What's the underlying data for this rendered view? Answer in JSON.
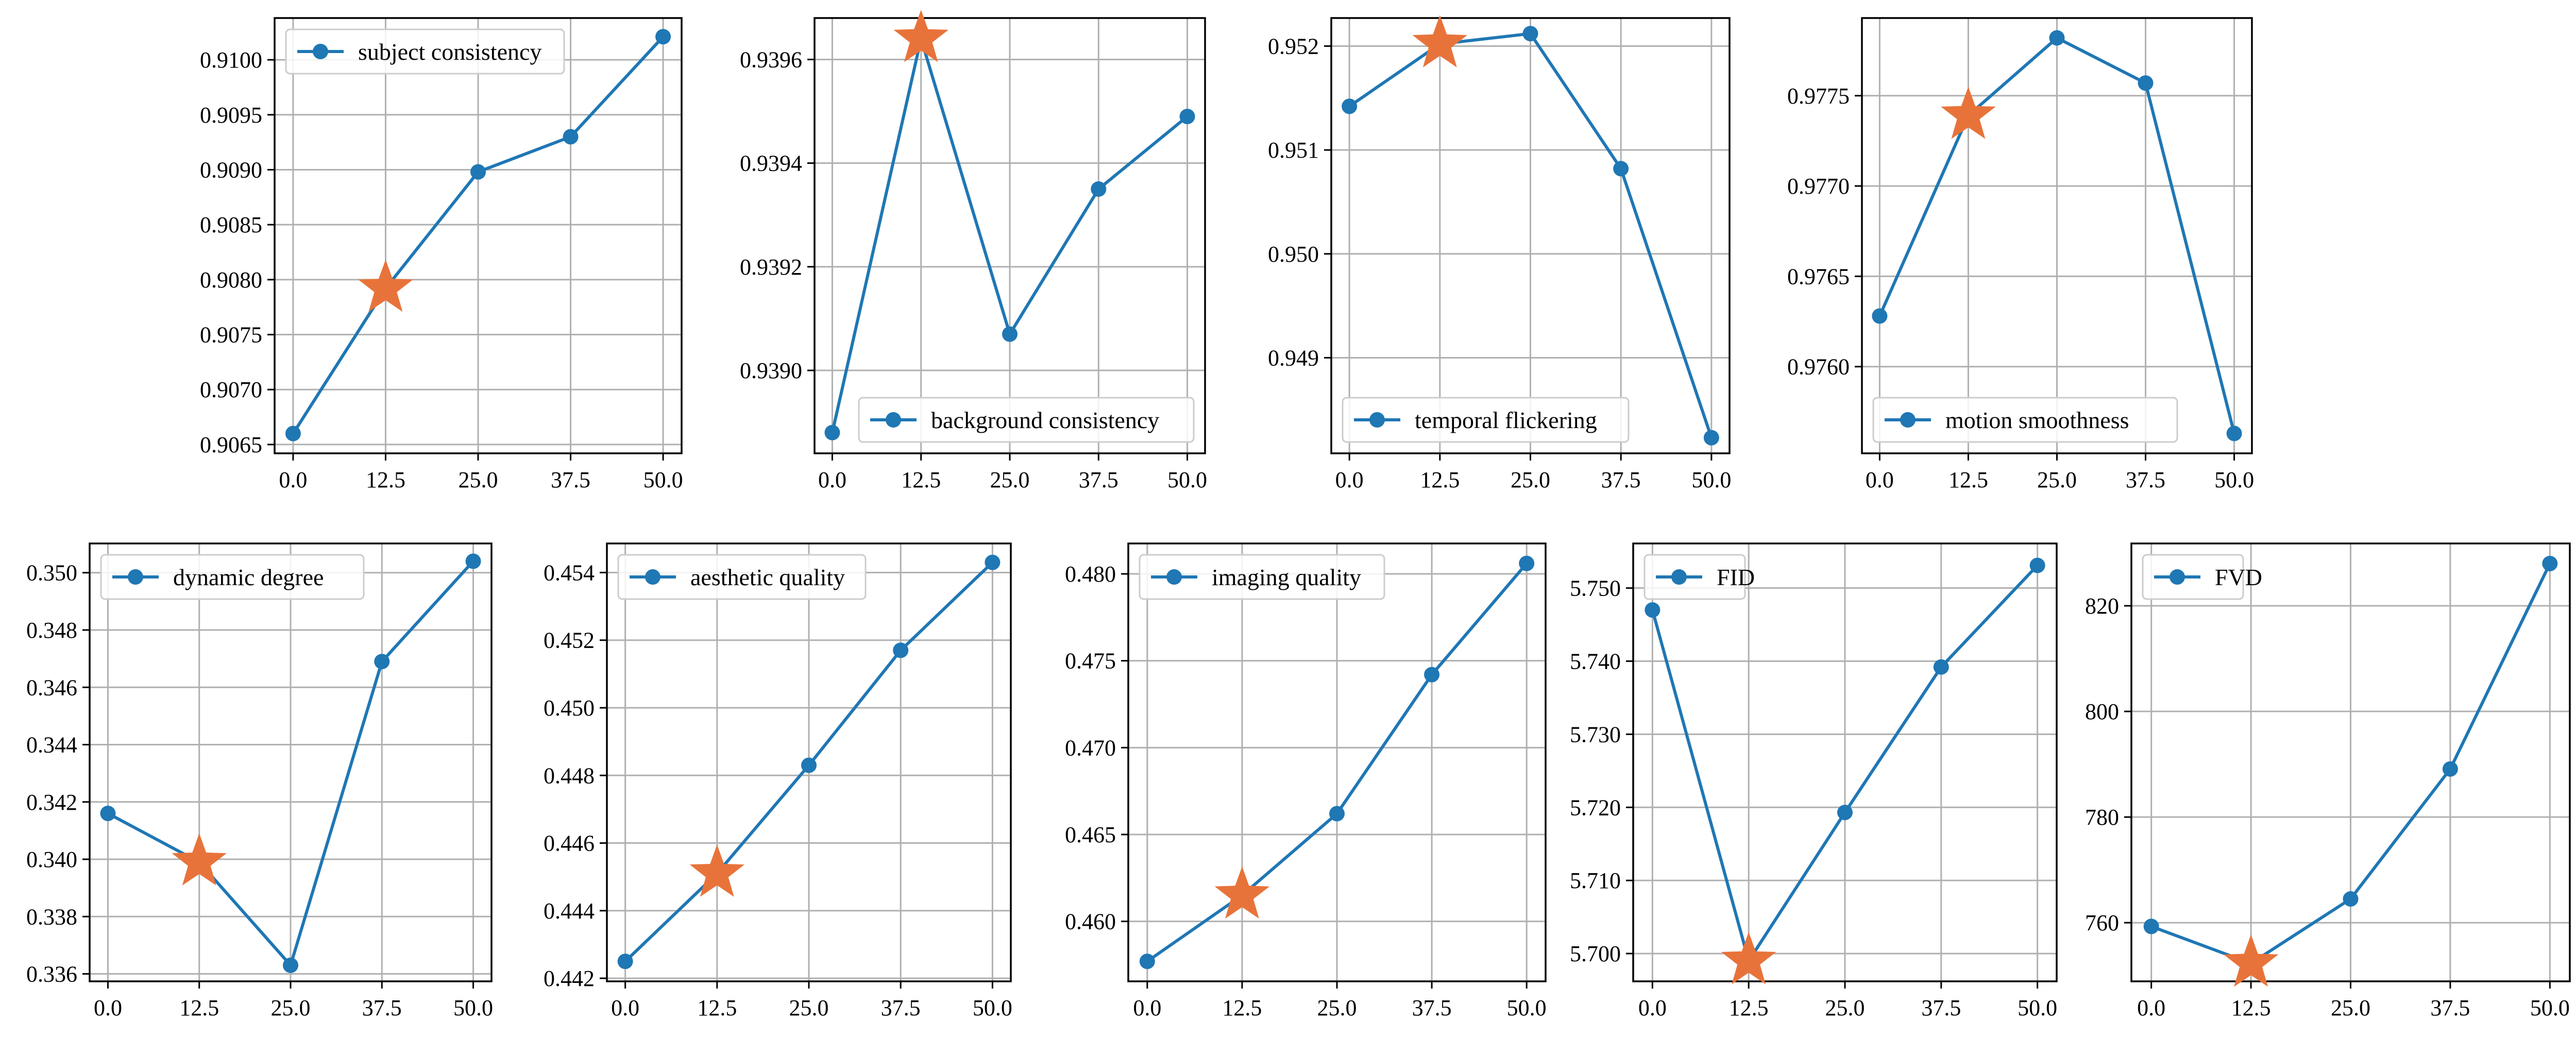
{
  "chart_data": [
    {
      "type": "line",
      "legend": "subject consistency",
      "legend_loc": "upper left",
      "x": [
        0.0,
        12.5,
        25.0,
        37.5,
        50.0
      ],
      "y": [
        0.9066,
        0.90792,
        0.90898,
        0.9093,
        0.91021
      ],
      "highlight": {
        "x": 12.5,
        "y": 0.90792
      },
      "xticks": [
        "0.0",
        "12.5",
        "25.0",
        "37.5",
        "50.0"
      ],
      "yticks": [
        0.9065,
        0.907,
        0.9075,
        0.908,
        0.9085,
        0.909,
        0.9095,
        0.91
      ],
      "ytick_labels": [
        "0.9065",
        "0.9070",
        "0.9075",
        "0.9080",
        "0.9085",
        "0.9090",
        "0.9095",
        "0.9100"
      ],
      "xlim": [
        -2.5,
        52.5
      ],
      "ylim": [
        0.90642,
        0.91038
      ],
      "grid": true
    },
    {
      "type": "line",
      "legend": "background consistency",
      "legend_loc": "lower right",
      "x": [
        0.0,
        12.5,
        25.0,
        37.5,
        50.0
      ],
      "y": [
        0.93888,
        0.93964,
        0.93907,
        0.93935,
        0.93949
      ],
      "highlight": {
        "x": 12.5,
        "y": 0.93964
      },
      "xticks": [
        "0.0",
        "12.5",
        "25.0",
        "37.5",
        "50.0"
      ],
      "yticks": [
        0.939,
        0.9392,
        0.9394,
        0.9396
      ],
      "ytick_labels": [
        "0.9390",
        "0.9392",
        "0.9394",
        "0.9396"
      ],
      "xlim": [
        -2.5,
        52.5
      ],
      "ylim": [
        0.93884,
        0.93968
      ],
      "grid": true
    },
    {
      "type": "line",
      "legend": "temporal flickering",
      "legend_loc": "lower left",
      "x": [
        0.0,
        12.5,
        25.0,
        37.5,
        50.0
      ],
      "y": [
        0.95142,
        0.95202,
        0.95212,
        0.95082,
        0.94823
      ],
      "highlight": {
        "x": 12.5,
        "y": 0.95202
      },
      "xticks": [
        "0.0",
        "12.5",
        "25.0",
        "37.5",
        "50.0"
      ],
      "yticks": [
        0.949,
        0.95,
        0.951,
        0.952
      ],
      "ytick_labels": [
        "0.949",
        "0.950",
        "0.951",
        "0.952"
      ],
      "xlim": [
        -2.5,
        52.5
      ],
      "ylim": [
        0.94808,
        0.95227
      ],
      "grid": true
    },
    {
      "type": "line",
      "legend": "motion smoothness",
      "legend_loc": "lower left",
      "x": [
        0.0,
        12.5,
        25.0,
        37.5,
        50.0
      ],
      "y": [
        0.97628,
        0.97739,
        0.97782,
        0.97757,
        0.97563
      ],
      "highlight": {
        "x": 12.5,
        "y": 0.97739
      },
      "xticks": [
        "0.0",
        "12.5",
        "25.0",
        "37.5",
        "50.0"
      ],
      "yticks": [
        0.976,
        0.9765,
        0.977,
        0.9775
      ],
      "ytick_labels": [
        "0.9760",
        "0.9765",
        "0.9770",
        "0.9775"
      ],
      "xlim": [
        -2.5,
        52.5
      ],
      "ylim": [
        0.97552,
        0.97793
      ],
      "grid": true
    },
    {
      "type": "line",
      "legend": "dynamic degree",
      "legend_loc": "upper left",
      "x": [
        0.0,
        12.5,
        25.0,
        37.5,
        50.0
      ],
      "y": [
        0.3416,
        0.3399,
        0.3363,
        0.3469,
        0.3504
      ],
      "highlight": {
        "x": 12.5,
        "y": 0.3399
      },
      "xticks": [
        "0.0",
        "12.5",
        "25.0",
        "37.5",
        "50.0"
      ],
      "yticks": [
        0.336,
        0.338,
        0.34,
        0.342,
        0.344,
        0.346,
        0.348,
        0.35
      ],
      "ytick_labels": [
        "0.336",
        "0.338",
        "0.340",
        "0.342",
        "0.344",
        "0.346",
        "0.348",
        "0.350"
      ],
      "xlim": [
        -2.5,
        52.5
      ],
      "ylim": [
        0.33574,
        0.35102
      ],
      "grid": true
    },
    {
      "type": "line",
      "legend": "aesthetic quality",
      "legend_loc": "upper left",
      "x": [
        0.0,
        12.5,
        25.0,
        37.5,
        50.0
      ],
      "y": [
        0.4425,
        0.4451,
        0.4483,
        0.4517,
        0.4543
      ],
      "highlight": {
        "x": 12.5,
        "y": 0.4451
      },
      "xticks": [
        "0.0",
        "12.5",
        "25.0",
        "37.5",
        "50.0"
      ],
      "yticks": [
        0.442,
        0.444,
        0.446,
        0.448,
        0.45,
        0.452,
        0.454
      ],
      "ytick_labels": [
        "0.442",
        "0.444",
        "0.446",
        "0.448",
        "0.450",
        "0.452",
        "0.454"
      ],
      "xlim": [
        -2.5,
        52.5
      ],
      "ylim": [
        0.44191,
        0.45486
      ],
      "grid": true
    },
    {
      "type": "line",
      "legend": "imaging quality",
      "legend_loc": "upper left",
      "x": [
        0.0,
        12.5,
        25.0,
        37.5,
        50.0
      ],
      "y": [
        0.4577,
        0.4615,
        0.4662,
        0.4742,
        0.4806
      ],
      "highlight": {
        "x": 12.5,
        "y": 0.4615
      },
      "xticks": [
        "0.0",
        "12.5",
        "25.0",
        "37.5",
        "50.0"
      ],
      "yticks": [
        0.46,
        0.465,
        0.47,
        0.475,
        0.48
      ],
      "ytick_labels": [
        "0.460",
        "0.465",
        "0.470",
        "0.475",
        "0.480"
      ],
      "xlim": [
        -2.5,
        52.5
      ],
      "ylim": [
        0.45655,
        0.48175
      ],
      "grid": true
    },
    {
      "type": "line",
      "legend": "FID",
      "legend_loc": "upper left",
      "x": [
        0.0,
        12.5,
        25.0,
        37.5,
        50.0
      ],
      "y": [
        5.747,
        5.699,
        5.7193,
        5.7392,
        5.7531
      ],
      "highlight": {
        "x": 12.5,
        "y": 5.699
      },
      "xticks": [
        "0.0",
        "12.5",
        "25.0",
        "37.5",
        "50.0"
      ],
      "yticks": [
        5.7,
        5.71,
        5.72,
        5.73,
        5.74,
        5.75
      ],
      "ytick_labels": [
        "5.700",
        "5.710",
        "5.720",
        "5.730",
        "5.740",
        "5.750"
      ],
      "xlim": [
        -2.5,
        52.5
      ],
      "ylim": [
        5.6962,
        5.7561
      ],
      "grid": true
    },
    {
      "type": "line",
      "legend": "FVD",
      "legend_loc": "upper left",
      "x": [
        0.0,
        12.5,
        25.0,
        37.5,
        50.0
      ],
      "y": [
        759.3,
        752.3,
        764.5,
        789.1,
        828.0
      ],
      "highlight": {
        "x": 12.5,
        "y": 752.3
      },
      "xticks": [
        "0.0",
        "12.5",
        "25.0",
        "37.5",
        "50.0"
      ],
      "yticks": [
        760,
        780,
        800,
        820
      ],
      "ytick_labels": [
        "760",
        "780",
        "800",
        "820"
      ],
      "xlim": [
        -2.5,
        52.5
      ],
      "ylim": [
        748.9,
        831.8
      ],
      "grid": true
    }
  ],
  "colors": {
    "line": "#1f77b4",
    "star": "#e8733a",
    "grid": "#b0b0b0",
    "axis": "#000000",
    "legend_border": "#cccccc"
  }
}
